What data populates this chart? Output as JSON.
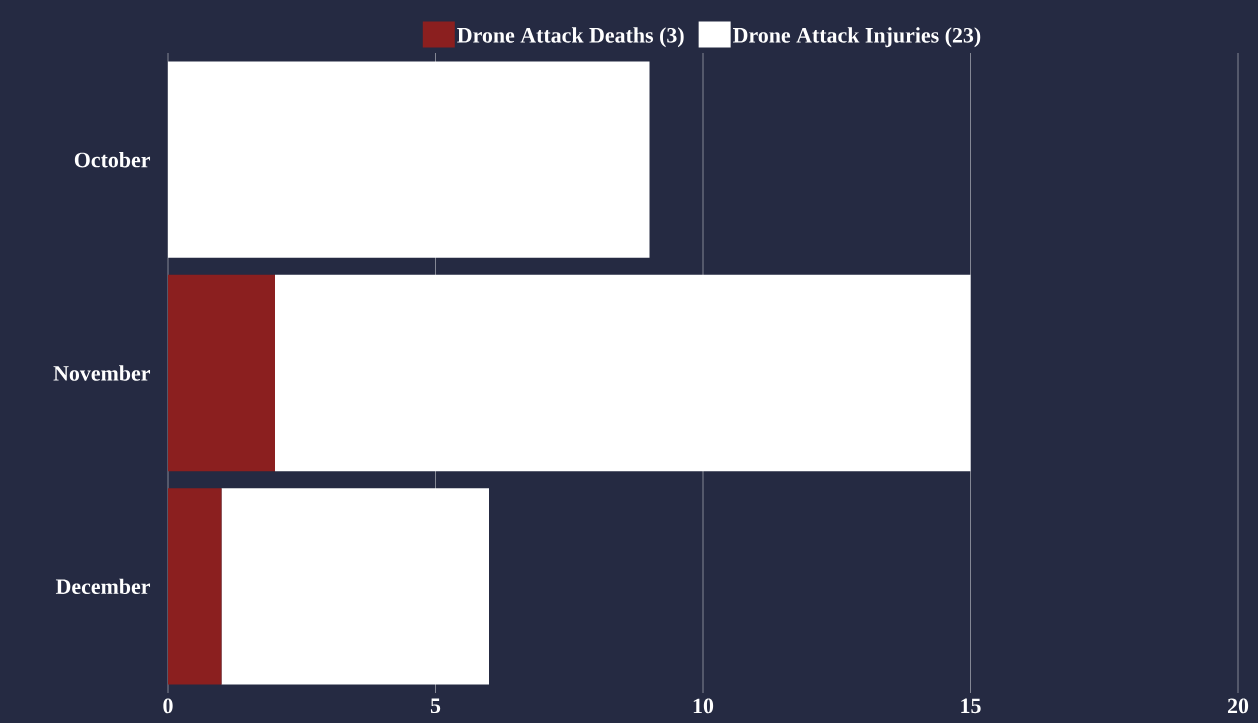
{
  "chart_data": {
    "type": "bar",
    "orientation": "horizontal",
    "stacked": true,
    "categories": [
      "October",
      "November",
      "December"
    ],
    "series": [
      {
        "name": "Drone Attack Deaths (3)",
        "color": "#8b1f1f",
        "values": [
          0,
          2,
          1
        ]
      },
      {
        "name": "Drone Attack Injuries (23)",
        "color": "#ffffff",
        "values": [
          9,
          13,
          5
        ]
      }
    ],
    "xlim": [
      0,
      20
    ],
    "xticks": [
      0,
      5,
      10,
      15,
      20
    ],
    "grid": "x",
    "legend": "top"
  }
}
